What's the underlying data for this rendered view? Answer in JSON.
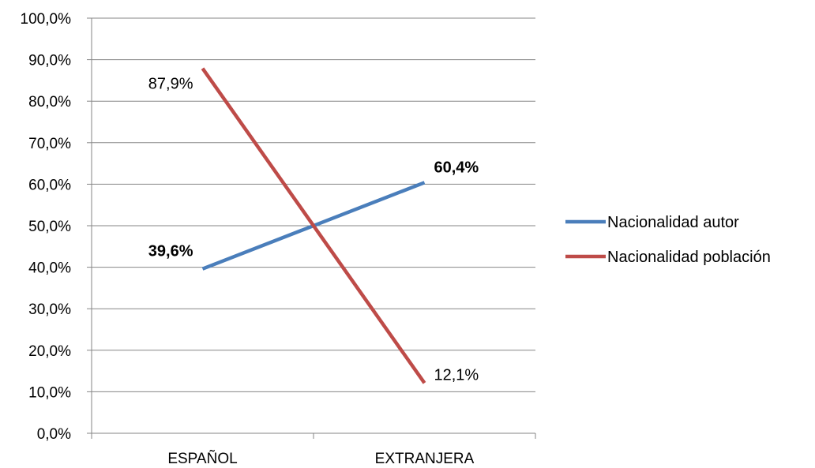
{
  "chart_data": {
    "type": "line",
    "categories": [
      "ESPAÑOL",
      "EXTRANJERA"
    ],
    "series": [
      {
        "name": "Nacionalidad autor",
        "values": [
          39.6,
          60.4
        ],
        "color": "#4a7ebb",
        "data_labels": [
          "39,6%",
          "60,4%"
        ],
        "label_bold": true
      },
      {
        "name": "Nacionalidad población",
        "values": [
          87.9,
          12.1
        ],
        "color": "#be4b48",
        "data_labels": [
          "87,9%",
          "12,1%"
        ],
        "label_bold": false
      }
    ],
    "y_ticks": [
      0,
      10,
      20,
      30,
      40,
      50,
      60,
      70,
      80,
      90,
      100
    ],
    "y_tick_labels": [
      "0,0%",
      "10,0%",
      "20,0%",
      "30,0%",
      "40,0%",
      "50,0%",
      "60,0%",
      "70,0%",
      "80,0%",
      "90,0%",
      "100,0%"
    ],
    "ylim": [
      0,
      100
    ],
    "grid": true,
    "legend_position": "right"
  }
}
